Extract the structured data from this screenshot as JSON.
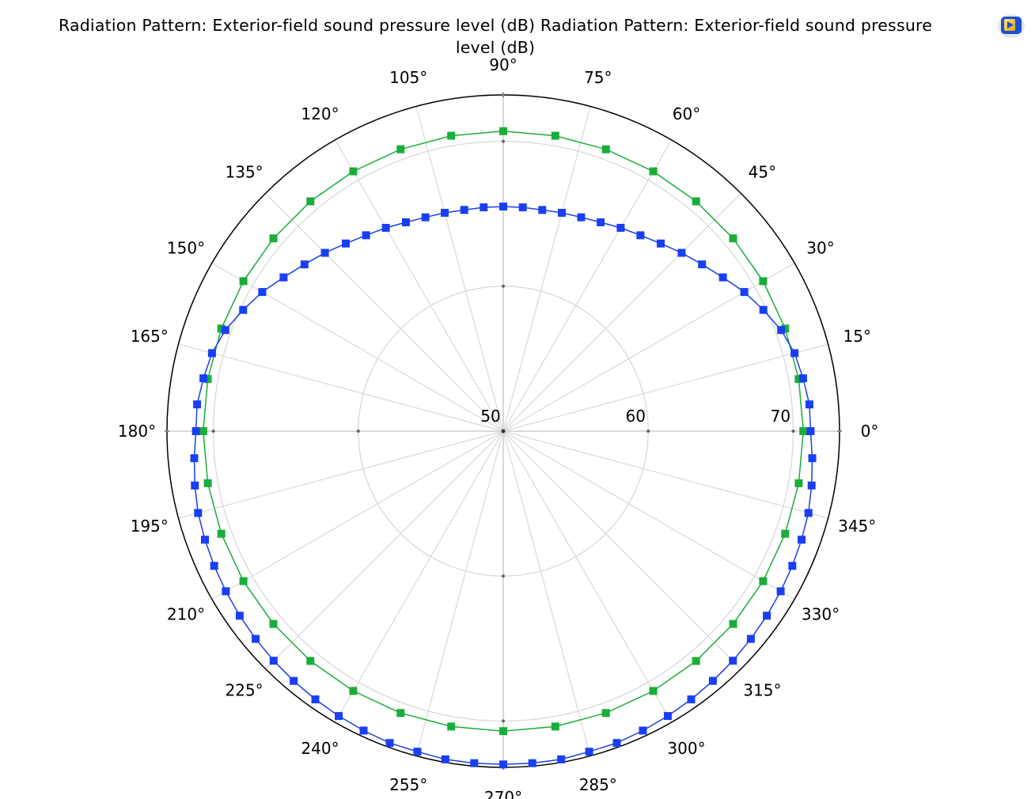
{
  "title_line1": "Radiation Pattern: Exterior-field sound pressure level (dB)  Radiation Pattern: Exterior-field sound pressure",
  "title_line2": "level (dB)",
  "toolbar_icon": "plot-window-icon",
  "colors": {
    "series_green": "#1aad3a",
    "series_blue": "#1a3ff2",
    "grid": "#d9d9d9",
    "frame": "#000000"
  },
  "chart_data": {
    "type": "polar",
    "title": "Radiation Pattern: Exterior-field sound pressure level (dB)",
    "r_range": [
      50,
      73.2
    ],
    "r_ticks": [
      50,
      60,
      70
    ],
    "r_tick_labels": [
      "50",
      "60",
      "70"
    ],
    "theta_ticks_deg": [
      0,
      15,
      30,
      45,
      60,
      75,
      90,
      105,
      120,
      135,
      150,
      165,
      180,
      195,
      210,
      225,
      240,
      255,
      270,
      285,
      300,
      315,
      330,
      345
    ],
    "theta_tick_labels": [
      "0°",
      "15°",
      "30°",
      "45°",
      "60°",
      "75°",
      "90°",
      "105°",
      "120°",
      "135°",
      "150°",
      "165°",
      "180°",
      "195°",
      "210°",
      "225°",
      "240°",
      "255°",
      "270°",
      "285°",
      "300°",
      "315°",
      "330°",
      "345°"
    ],
    "grid": true,
    "legend": "none",
    "series": [
      {
        "name": "",
        "color": "#1aad3a",
        "marker": "square",
        "theta_deg": [
          0,
          10,
          20,
          30,
          40,
          50,
          60,
          70,
          80,
          90,
          100,
          110,
          120,
          130,
          140,
          150,
          160,
          170,
          180,
          190,
          200,
          210,
          220,
          230,
          240,
          250,
          260,
          270,
          280,
          290,
          300,
          310,
          320,
          330,
          340,
          350
        ],
        "r": [
          70.7,
          70.7,
          70.7,
          70.7,
          70.7,
          70.7,
          70.7,
          70.7,
          70.7,
          70.7,
          70.7,
          70.7,
          70.7,
          70.7,
          70.7,
          70.7,
          70.7,
          70.7,
          70.7,
          70.7,
          70.7,
          70.7,
          70.7,
          70.7,
          70.7,
          70.7,
          70.7,
          70.7,
          70.7,
          70.7,
          70.7,
          70.7,
          70.7,
          70.7,
          70.7,
          70.7
        ]
      },
      {
        "name": "",
        "color": "#1a3ff2",
        "marker": "square",
        "theta_deg": [
          0,
          5,
          10,
          15,
          20,
          25,
          30,
          35,
          40,
          45,
          50,
          55,
          60,
          65,
          70,
          75,
          80,
          85,
          90,
          95,
          100,
          105,
          110,
          115,
          120,
          125,
          130,
          135,
          140,
          145,
          150,
          155,
          160,
          165,
          170,
          175,
          180,
          185,
          190,
          195,
          200,
          205,
          210,
          215,
          220,
          225,
          230,
          235,
          240,
          245,
          250,
          255,
          260,
          265,
          270,
          275,
          280,
          285,
          290,
          295,
          300,
          305,
          310,
          315,
          320,
          325,
          330,
          335,
          340,
          345,
          350,
          355
        ],
        "r": [
          71.2,
          71.2,
          71.0,
          70.8,
          70.4,
          69.8,
          69.2,
          68.5,
          67.9,
          67.4,
          66.9,
          66.5,
          66.2,
          65.9,
          65.7,
          65.6,
          65.5,
          65.5,
          65.5,
          65.5,
          65.5,
          65.6,
          65.7,
          65.9,
          66.2,
          66.5,
          66.9,
          67.4,
          67.9,
          68.5,
          69.2,
          69.8,
          70.4,
          70.8,
          71.0,
          71.2,
          71.2,
          71.4,
          71.6,
          71.8,
          71.9,
          72.0,
          72.1,
          72.2,
          72.3,
          72.4,
          72.5,
          72.6,
          72.7,
          72.8,
          72.9,
          72.9,
          73.0,
          73.0,
          73.0,
          73.0,
          73.0,
          72.9,
          72.9,
          72.8,
          72.7,
          72.6,
          72.5,
          72.4,
          72.3,
          72.2,
          72.1,
          72.0,
          71.9,
          71.8,
          71.6,
          71.4
        ]
      }
    ]
  }
}
